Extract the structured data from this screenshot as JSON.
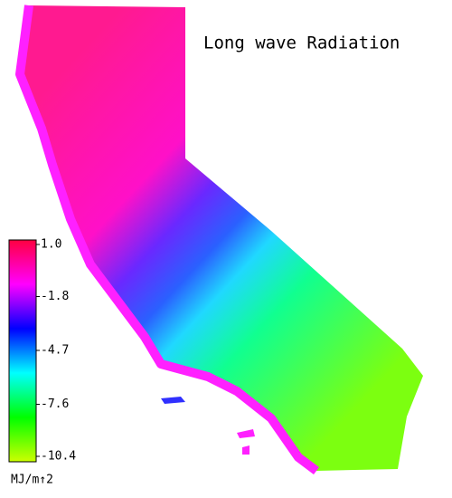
{
  "title": "Long wave Radiation",
  "colorbar": {
    "lim": [
      -10.4,
      1.0
    ],
    "ticks": [
      {
        "value": 1.0,
        "label": "1.0"
      },
      -1.8,
      -4.7,
      -7.6,
      -10.4
    ],
    "colors": [
      "#ff0040",
      "#ff00ff",
      "#0000ff",
      "#00ffff",
      "#00ff00",
      "#ccff00"
    ],
    "unit": "MJ/m↑2"
  }
}
